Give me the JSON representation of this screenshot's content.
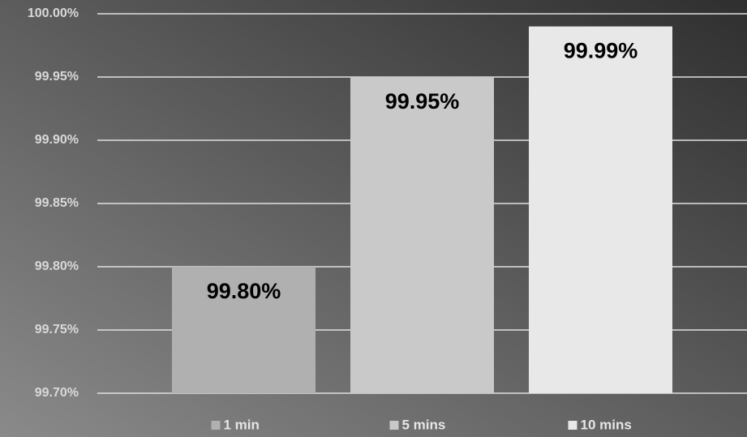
{
  "chart_data": {
    "type": "bar",
    "categories": [
      null
    ],
    "series": [
      {
        "name": "1 min",
        "color": "#b0b0b0",
        "values": [
          99.8
        ],
        "value_labels": [
          "99.80%"
        ]
      },
      {
        "name": "5 mins",
        "color": "#c9c9c9",
        "values": [
          99.95
        ],
        "value_labels": [
          "99.95%"
        ]
      },
      {
        "name": "10 mins",
        "color": "#e8e8e8",
        "values": [
          99.99
        ],
        "value_labels": [
          "99.99%"
        ]
      }
    ],
    "ylim": [
      99.7,
      100.0
    ],
    "yticks": [
      {
        "value": 99.7,
        "label": "99.70%"
      },
      {
        "value": 99.75,
        "label": "99.75%"
      },
      {
        "value": 99.8,
        "label": "99.80%"
      },
      {
        "value": 99.85,
        "label": "99.85%"
      },
      {
        "value": 99.9,
        "label": "99.90%"
      },
      {
        "value": 99.95,
        "label": "99.95%"
      },
      {
        "value": 100.0,
        "label": "100.00%"
      }
    ],
    "grid": true,
    "legend": "bottom"
  }
}
